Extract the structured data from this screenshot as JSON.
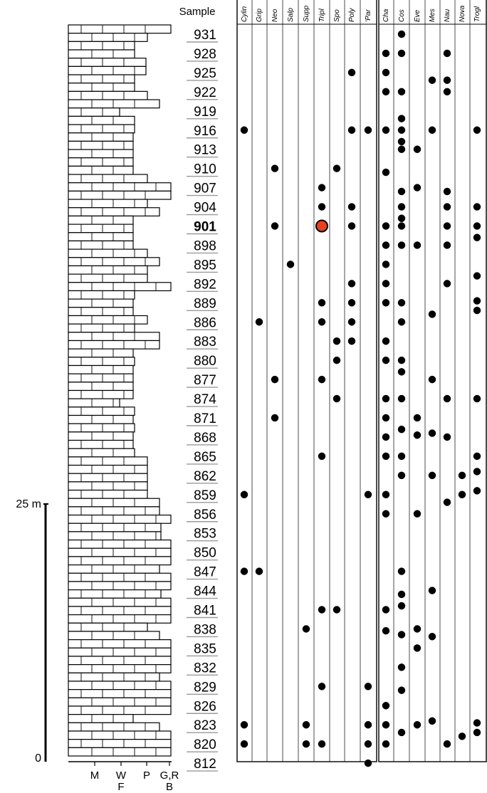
{
  "chart_data": {
    "type": "scatter",
    "samples_header": "Sample",
    "samples": [
      "931",
      "928",
      "925",
      "922",
      "919",
      "916",
      "913",
      "910",
      "907",
      "904",
      "901",
      "898",
      "895",
      "892",
      "889",
      "886",
      "883",
      "880",
      "877",
      "874",
      "871",
      "868",
      "865",
      "862",
      "859",
      "856",
      "853",
      "850",
      "847",
      "844",
      "841",
      "838",
      "835",
      "832",
      "829",
      "826",
      "823",
      "820",
      "812"
    ],
    "highlighted_sample": "901",
    "taxa": [
      "Cylin",
      "Grip",
      "Neo",
      "Salp",
      "Supp",
      "Tripl",
      "Spo",
      "Poly",
      "‘Par",
      "Cha",
      "Cos",
      "Eve",
      "Mes",
      "Nau",
      "Nova",
      "Trogl"
    ],
    "taxon_groups": [
      [
        0,
        1,
        2,
        3,
        4,
        5,
        6,
        7,
        8
      ],
      [
        9,
        10,
        11,
        12,
        13,
        14,
        15
      ]
    ],
    "texture_axis": {
      "top_labels": [
        "M",
        "W",
        "P",
        "G,R"
      ],
      "bottom_labels": [
        "F",
        "B"
      ]
    },
    "scale_bar": {
      "unit": "m",
      "top_label": "25 m",
      "bottom_label": "0"
    },
    "highlight_color": "#e8401c",
    "dot_color": "#000000",
    "occurrences": [
      [
        0,
        5
      ],
      [
        0,
        24
      ],
      [
        0,
        28
      ],
      [
        0,
        36
      ],
      [
        0,
        37
      ],
      [
        1,
        15
      ],
      [
        1,
        28
      ],
      [
        2,
        7
      ],
      [
        2,
        10
      ],
      [
        2,
        18
      ],
      [
        2,
        20
      ],
      [
        3,
        12
      ],
      [
        4,
        31
      ],
      [
        4,
        36
      ],
      [
        4,
        37
      ],
      [
        5,
        8
      ],
      [
        5,
        9
      ],
      [
        5,
        10
      ],
      [
        5,
        14
      ],
      [
        5,
        15
      ],
      [
        5,
        18
      ],
      [
        5,
        22
      ],
      [
        5,
        30
      ],
      [
        5,
        34
      ],
      [
        5,
        37
      ],
      [
        6,
        7
      ],
      [
        6,
        16
      ],
      [
        6,
        17
      ],
      [
        6,
        19
      ],
      [
        6,
        30
      ],
      [
        7,
        2
      ],
      [
        7,
        5
      ],
      [
        7,
        9
      ],
      [
        7,
        10
      ],
      [
        7,
        13
      ],
      [
        7,
        14
      ],
      [
        7,
        15
      ],
      [
        7,
        16
      ],
      [
        8,
        5
      ],
      [
        8,
        24
      ],
      [
        8,
        34
      ],
      [
        8,
        36
      ],
      [
        8,
        37
      ],
      [
        8,
        38
      ],
      [
        9,
        1
      ],
      [
        9,
        2
      ],
      [
        9,
        3
      ],
      [
        9,
        5
      ],
      [
        9,
        7.2
      ],
      [
        9,
        10
      ],
      [
        9,
        11
      ],
      [
        9,
        12
      ],
      [
        9,
        13
      ],
      [
        9,
        14
      ],
      [
        9,
        16
      ],
      [
        9,
        17
      ],
      [
        9,
        19
      ],
      [
        9,
        20
      ],
      [
        9,
        21
      ],
      [
        9,
        22
      ],
      [
        9,
        24
      ],
      [
        9,
        25
      ],
      [
        9,
        30
      ],
      [
        9,
        31.1
      ],
      [
        9,
        35
      ],
      [
        9,
        36
      ],
      [
        9,
        37
      ],
      [
        10,
        0
      ],
      [
        10,
        1
      ],
      [
        10,
        3
      ],
      [
        10,
        4.4
      ],
      [
        10,
        5
      ],
      [
        10,
        5.6
      ],
      [
        10,
        6
      ],
      [
        10,
        8.2
      ],
      [
        10,
        9
      ],
      [
        10,
        9.6
      ],
      [
        10,
        10
      ],
      [
        10,
        11
      ],
      [
        10,
        14
      ],
      [
        10,
        15
      ],
      [
        10,
        17
      ],
      [
        10,
        17.6
      ],
      [
        10,
        19
      ],
      [
        10,
        20.6
      ],
      [
        10,
        22
      ],
      [
        10,
        23
      ],
      [
        10,
        28
      ],
      [
        10,
        29.2
      ],
      [
        10,
        29.8
      ],
      [
        10,
        31.3
      ],
      [
        10,
        33
      ],
      [
        10,
        34.2
      ],
      [
        10,
        36.4
      ],
      [
        11,
        6
      ],
      [
        11,
        8
      ],
      [
        11,
        11
      ],
      [
        11,
        20
      ],
      [
        11,
        20.9
      ],
      [
        11,
        25
      ],
      [
        11,
        31
      ],
      [
        11,
        32
      ],
      [
        11,
        36
      ],
      [
        12,
        2.4
      ],
      [
        12,
        5
      ],
      [
        12,
        14.6
      ],
      [
        12,
        18
      ],
      [
        12,
        20.8
      ],
      [
        12,
        23
      ],
      [
        12,
        29
      ],
      [
        12,
        31.4
      ],
      [
        12,
        35.8
      ],
      [
        13,
        1
      ],
      [
        13,
        2.4
      ],
      [
        13,
        3
      ],
      [
        13,
        8.2
      ],
      [
        13,
        9
      ],
      [
        13,
        10
      ],
      [
        13,
        11
      ],
      [
        13,
        13
      ],
      [
        13,
        19
      ],
      [
        13,
        21
      ],
      [
        13,
        24.4
      ],
      [
        13,
        37
      ],
      [
        14,
        23
      ],
      [
        14,
        24
      ],
      [
        14,
        36.6
      ],
      [
        15,
        5
      ],
      [
        15,
        9
      ],
      [
        15,
        10
      ],
      [
        15,
        10.6
      ],
      [
        15,
        12.6
      ],
      [
        15,
        13.9
      ],
      [
        15,
        14.4
      ],
      [
        15,
        19
      ],
      [
        15,
        22
      ],
      [
        15,
        22.8
      ],
      [
        15,
        23.8
      ],
      [
        15,
        35.9
      ],
      [
        15,
        36.4
      ]
    ]
  }
}
